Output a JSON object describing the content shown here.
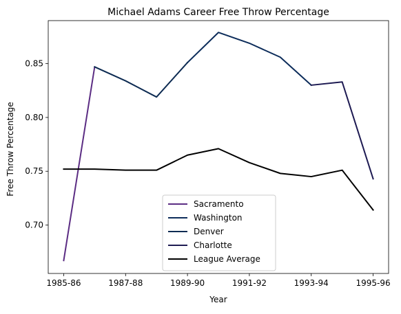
{
  "chart_data": {
    "type": "line",
    "title": "Michael Adams  Career Free Throw Percentage",
    "xlabel": "Year",
    "ylabel": "Free Throw Percentage",
    "xlim": [
      1985.5,
      1996.5
    ],
    "ylim": [
      0.655,
      0.89
    ],
    "grid": false,
    "legend_position": "lower-center",
    "x_ticks": [
      {
        "value": 1986,
        "label": "1985-86"
      },
      {
        "value": 1988,
        "label": "1987-88"
      },
      {
        "value": 1990,
        "label": "1989-90"
      },
      {
        "value": 1992,
        "label": "1991-92"
      },
      {
        "value": 1994,
        "label": "1993-94"
      },
      {
        "value": 1996,
        "label": "1995-96"
      }
    ],
    "y_ticks": [
      {
        "value": 0.7,
        "label": "0.70"
      },
      {
        "value": 0.75,
        "label": "0.75"
      },
      {
        "value": 0.8,
        "label": "0.80"
      },
      {
        "value": 0.85,
        "label": "0.85"
      }
    ],
    "series": [
      {
        "name": "Sacramento",
        "color": "#5b2c83",
        "x": [
          1986,
          1987
        ],
        "values": [
          0.667,
          0.847
        ]
      },
      {
        "name": "Washington",
        "color": "#0c2c5a",
        "x": [
          1990,
          1991,
          1992,
          1993,
          1994
        ],
        "values": [
          0.851,
          0.879,
          0.869,
          0.856,
          0.83
        ]
      },
      {
        "name": "Denver",
        "color": "#0d2b52",
        "x": [
          1987,
          1988,
          1989,
          1990
        ],
        "values": [
          0.847,
          0.834,
          0.819,
          0.851
        ]
      },
      {
        "name": "Charlotte",
        "color": "#1d1a52",
        "x": [
          1994,
          1995,
          1996
        ],
        "values": [
          0.83,
          0.833,
          0.743
        ]
      },
      {
        "name": "League Average",
        "color": "#000000",
        "x": [
          1986,
          1987,
          1988,
          1989,
          1990,
          1991,
          1992,
          1993,
          1994,
          1995,
          1996
        ],
        "values": [
          0.752,
          0.752,
          0.751,
          0.751,
          0.765,
          0.771,
          0.758,
          0.748,
          0.745,
          0.751,
          0.714
        ]
      }
    ]
  }
}
